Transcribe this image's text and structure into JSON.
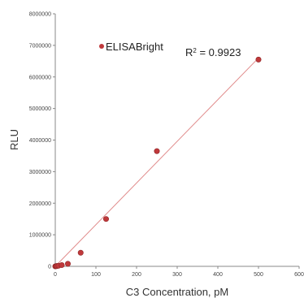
{
  "chart_data": {
    "type": "scatter",
    "title": "",
    "xlabel": "C3 Concentration, pM",
    "ylabel": "RLU",
    "xlim": [
      0,
      600
    ],
    "ylim": [
      0,
      8000000
    ],
    "x_ticks": [
      "0",
      "100",
      "200",
      "300",
      "400",
      "500",
      "600"
    ],
    "y_ticks": [
      "0",
      "1000000",
      "2000000",
      "3000000",
      "4000000",
      "5000000",
      "6000000",
      "7000000",
      "8000000"
    ],
    "grid": false,
    "legend": {
      "placement": "top-left",
      "marker_color": "#c0393b"
    },
    "series": [
      {
        "name": "ELISABright",
        "color": "#c0393b",
        "x": [
          0,
          2,
          4,
          8,
          16,
          31,
          62.5,
          125,
          250,
          500
        ],
        "y": [
          0,
          5000,
          10000,
          20000,
          40000,
          80000,
          430000,
          1500000,
          3650000,
          6550000
        ]
      }
    ],
    "trendline": {
      "color": "#e08a8a",
      "x": [
        0,
        500
      ],
      "y": [
        -70000,
        6600000
      ]
    },
    "r_squared_label": {
      "prefix": "R",
      "sup": "2",
      "suffix": " = 0.9923"
    }
  }
}
